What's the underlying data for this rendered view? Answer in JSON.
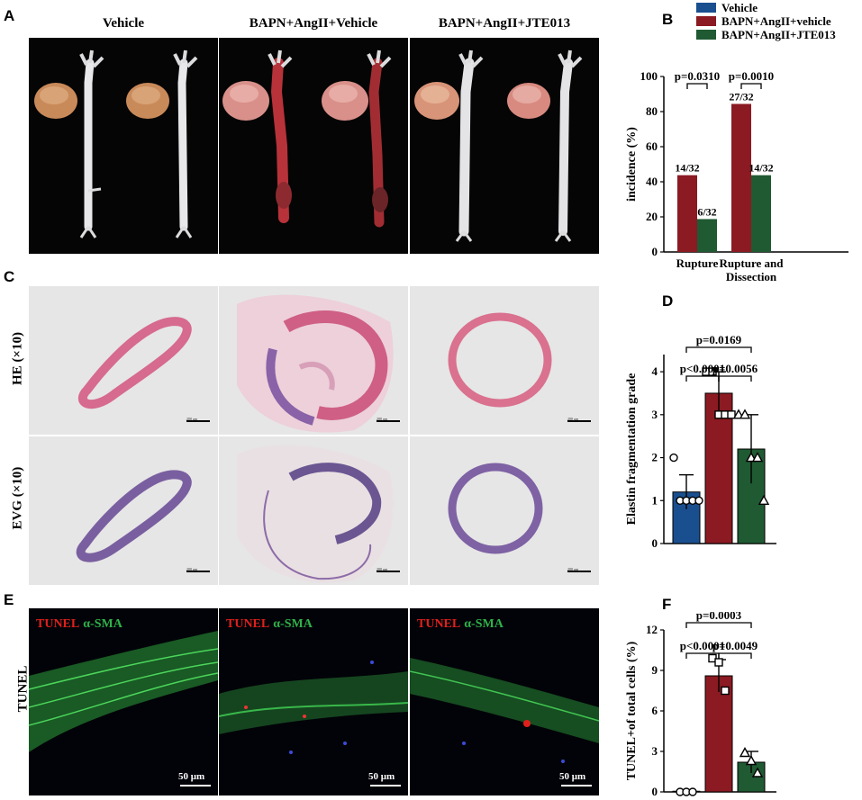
{
  "panels": {
    "a": "A",
    "b": "B",
    "c": "C",
    "d": "D",
    "e": "E",
    "f": "F"
  },
  "groups": {
    "vehicle": "Vehicle",
    "bapn_vehicle": "BAPN+AngII+Vehicle",
    "bapn_jte": "BAPN+AngII+JTE013"
  },
  "legend": {
    "items": [
      {
        "label": "Vehicle",
        "color": "#1a4f8f"
      },
      {
        "label": "BAPN+AngII+vehicle",
        "color": "#8b1a22"
      },
      {
        "label": "BAPN+AngII+JTE013",
        "color": "#1f5a32"
      }
    ]
  },
  "row_labels": {
    "he": "HE (×10)",
    "evg": "EVG (×10)",
    "tunel": "TUNEL"
  },
  "histology": {
    "scale_text": "200 μm"
  },
  "fluorescence": {
    "stain1": "TUNEL",
    "stain2": "α-SMA",
    "scale_text": "50 μm"
  },
  "chart_data": [
    {
      "panel": "B",
      "type": "bar",
      "categories": [
        "Rupture",
        "Rupture and Dissection"
      ],
      "series": [
        {
          "name": "BAPN+AngII+vehicle",
          "values": [
            43.75,
            84.375
          ],
          "labels": [
            "14/32",
            "27/32"
          ],
          "color": "#8b1a22"
        },
        {
          "name": "BAPN+AngII+JTE013",
          "values": [
            18.75,
            43.75
          ],
          "labels": [
            "6/32",
            "14/32"
          ],
          "color": "#1f5a32"
        }
      ],
      "ylabel": "incidence (%)",
      "ylim": [
        0,
        100
      ],
      "yticks": [
        0,
        20,
        40,
        60,
        80,
        100
      ],
      "pvalues": [
        "p=0.0310",
        "p=0.0010"
      ]
    },
    {
      "panel": "D",
      "type": "bar",
      "categories": [
        "Vehicle",
        "BAPN+AngII+vehicle",
        "BAPN+AngII+JTE013"
      ],
      "values": [
        1.2,
        3.5,
        2.2
      ],
      "errors": [
        0.4,
        0.5,
        0.8
      ],
      "points": [
        [
          2,
          1,
          1,
          1,
          1
        ],
        [
          4,
          4,
          3,
          3,
          3
        ],
        [
          3,
          3,
          2,
          2,
          1
        ]
      ],
      "markers": [
        "circle",
        "square",
        "triangle"
      ],
      "colors": [
        "#1a4f8f",
        "#8b1a22",
        "#1f5a32"
      ],
      "ylabel": "Elastin fragmentation grade",
      "ylim": [
        0,
        4.4
      ],
      "yticks": [
        0,
        1,
        2,
        3,
        4
      ],
      "pvalues": [
        "p=0.0169",
        "p<0.0001",
        "p=0.0056"
      ]
    },
    {
      "panel": "F",
      "type": "bar",
      "categories": [
        "Vehicle",
        "BAPN+AngII+vehicle",
        "BAPN+AngII+JTE013"
      ],
      "values": [
        0.05,
        8.6,
        2.2
      ],
      "errors": [
        0.0,
        1.2,
        0.8
      ],
      "points": [
        [
          0,
          0,
          0
        ],
        [
          9.9,
          9.6,
          7.5
        ],
        [
          2.9,
          2.3,
          1.4
        ]
      ],
      "markers": [
        "circle",
        "square",
        "triangle"
      ],
      "colors": [
        "#1a4f8f",
        "#8b1a22",
        "#1f5a32"
      ],
      "ylabel": "TUNEL+of total cells (%)",
      "ylim": [
        0,
        12
      ],
      "yticks": [
        0,
        3,
        6,
        9,
        12
      ],
      "pvalues": [
        "p=0.0003",
        "p<0.0001",
        "p=0.0049"
      ]
    }
  ]
}
